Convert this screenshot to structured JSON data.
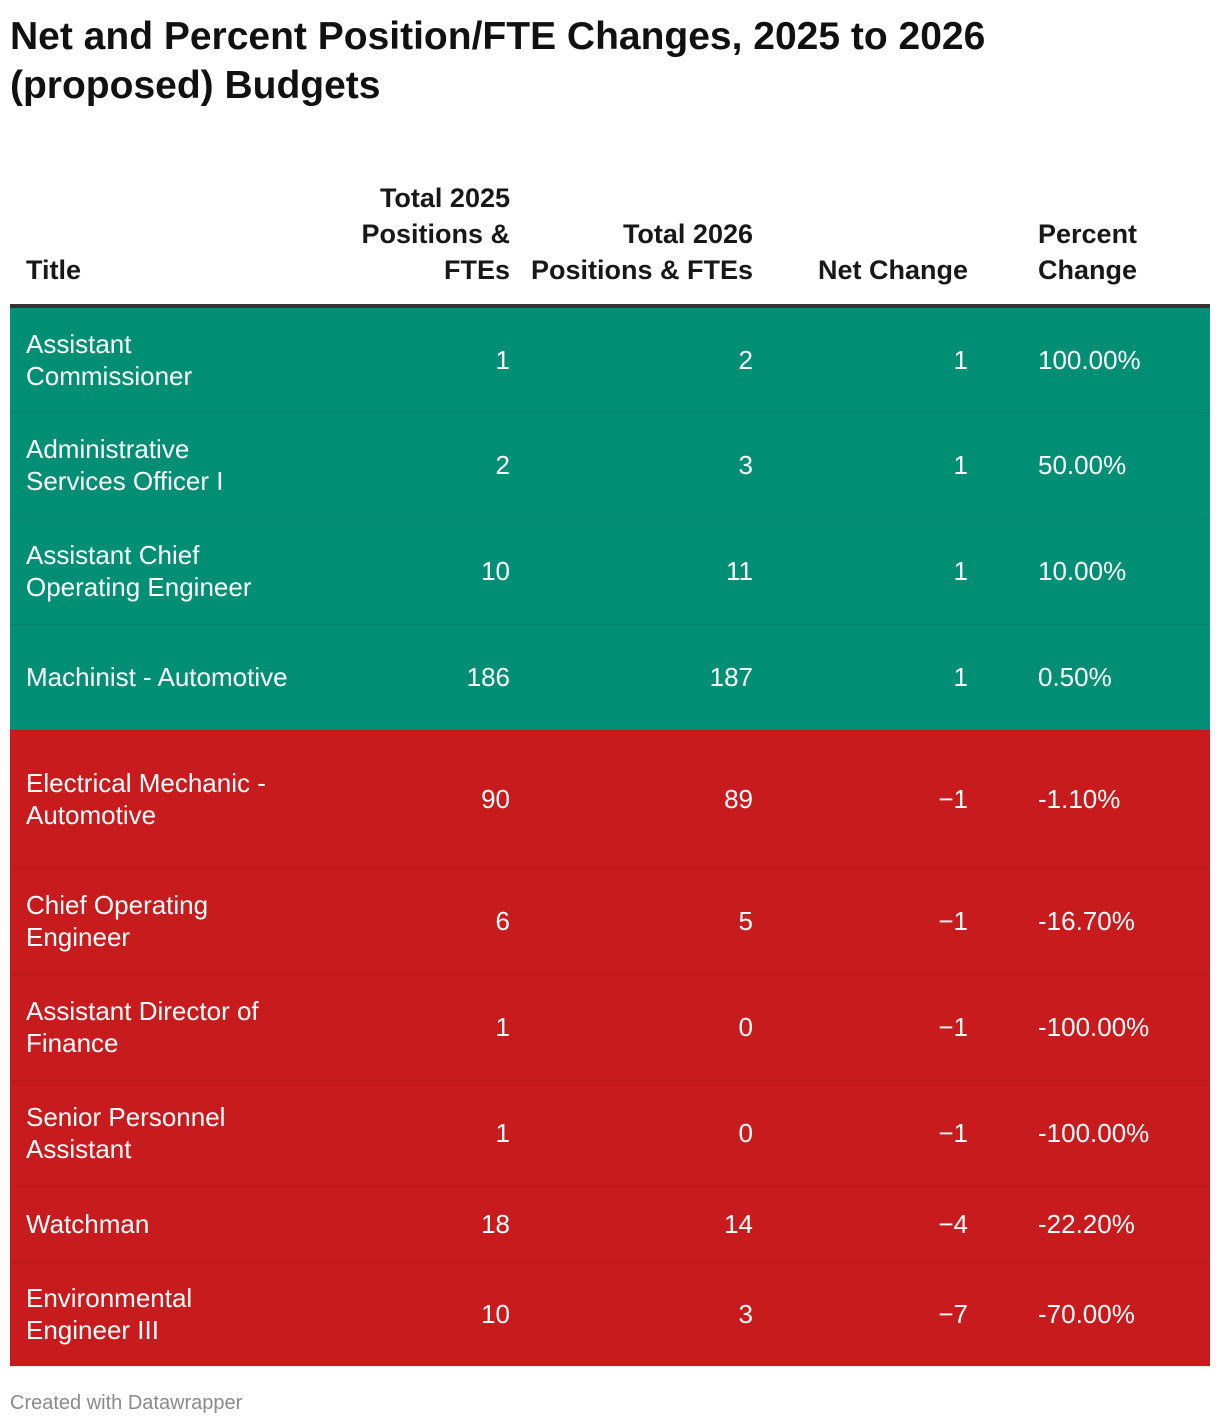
{
  "title": "Net and Percent Position/FTE Changes, 2025 to 2026 (proposed) Budgets",
  "footer": "Created with Datawrapper",
  "colors": {
    "increase": "#008f75",
    "decrease": "#c81b1d"
  },
  "chart_data": {
    "type": "table",
    "title": "Net and Percent Position/FTE Changes, 2025 to 2026 (proposed) Budgets",
    "columns": [
      "Title",
      "Total 2025 Positions & FTEs",
      "Total 2026 Positions & FTEs",
      "Net Change",
      "Percent Change"
    ],
    "rows": [
      {
        "title": "Assistant Commissioner",
        "total_2025": "1",
        "total_2026": "2",
        "net": "1",
        "pct": "100.00%",
        "direction": "increase"
      },
      {
        "title": "Administrative Services Officer I",
        "total_2025": "2",
        "total_2026": "3",
        "net": "1",
        "pct": "50.00%",
        "direction": "increase"
      },
      {
        "title": "Assistant Chief Operating Engineer",
        "total_2025": "10",
        "total_2026": "11",
        "net": "1",
        "pct": "10.00%",
        "direction": "increase"
      },
      {
        "title": "Machinist - Automotive",
        "total_2025": "186",
        "total_2026": "187",
        "net": "1",
        "pct": "0.50%",
        "direction": "increase"
      },
      {
        "title": "Electrical Mechanic - Automotive",
        "total_2025": "90",
        "total_2026": "89",
        "net": "−1",
        "pct": "-1.10%",
        "direction": "decrease"
      },
      {
        "title": "Chief Operating Engineer",
        "total_2025": "6",
        "total_2026": "5",
        "net": "−1",
        "pct": "-16.70%",
        "direction": "decrease"
      },
      {
        "title": "Assistant Director of Finance",
        "total_2025": "1",
        "total_2026": "0",
        "net": "−1",
        "pct": "-100.00%",
        "direction": "decrease"
      },
      {
        "title": "Senior Personnel Assistant",
        "total_2025": "1",
        "total_2026": "0",
        "net": "−1",
        "pct": "-100.00%",
        "direction": "decrease"
      },
      {
        "title": "Watchman",
        "total_2025": "18",
        "total_2026": "14",
        "net": "−4",
        "pct": "-22.20%",
        "direction": "decrease"
      },
      {
        "title": "Environmental Engineer III",
        "total_2025": "10",
        "total_2026": "3",
        "net": "−7",
        "pct": "-70.00%",
        "direction": "decrease"
      }
    ]
  }
}
